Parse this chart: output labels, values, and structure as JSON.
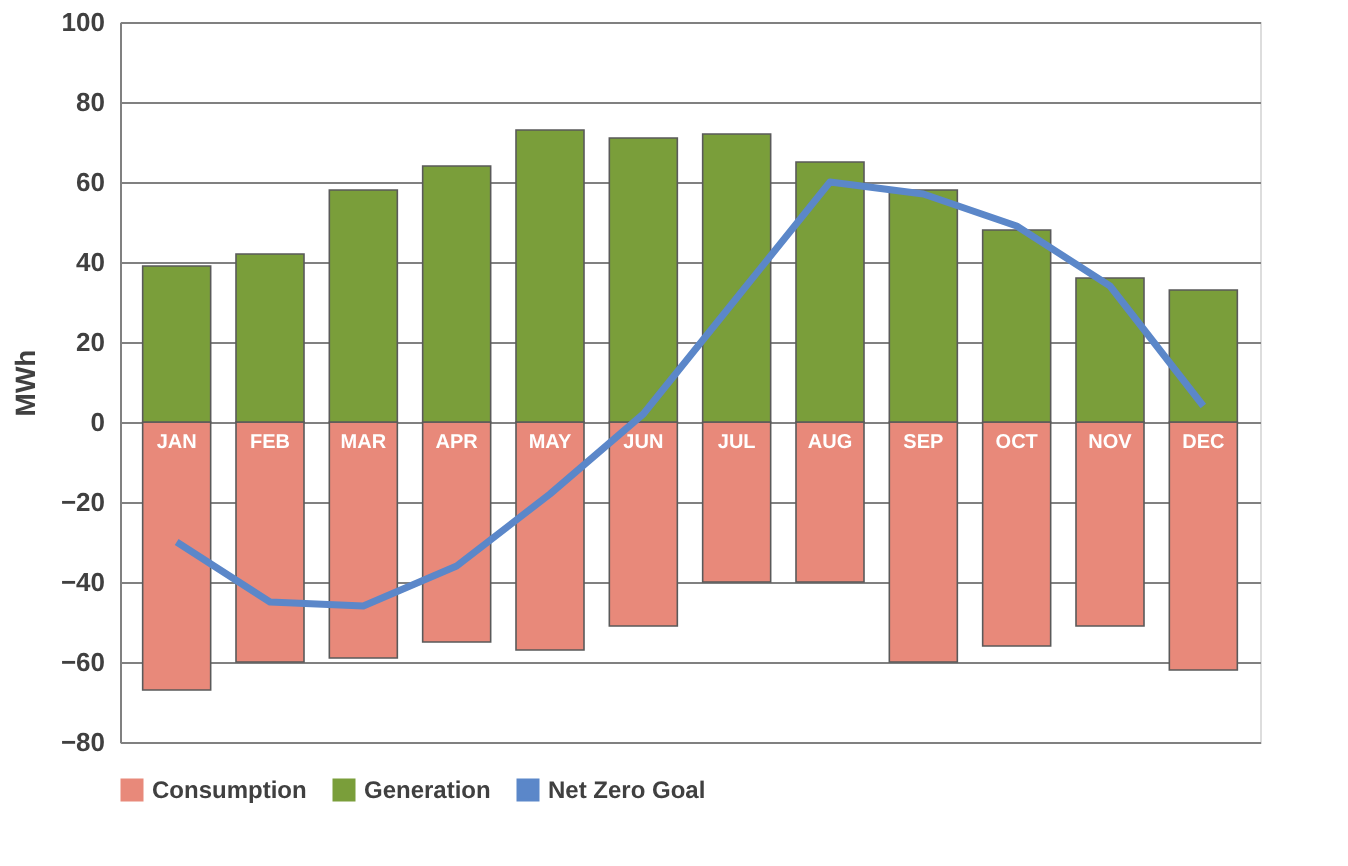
{
  "chart_data": {
    "type": "bar",
    "stacked": true,
    "ylabel": "MWh",
    "categories": [
      "JAN",
      "FEB",
      "MAR",
      "APR",
      "MAY",
      "JUN",
      "JUL",
      "AUG",
      "SEP",
      "OCT",
      "NOV",
      "DEC"
    ],
    "series": [
      {
        "name": "Consumption",
        "color": "#e8897a",
        "values": [
          -67,
          -60,
          -59,
          -55,
          -57,
          -51,
          -40,
          -40,
          -60,
          -56,
          -51,
          -62
        ]
      },
      {
        "name": "Generation",
        "color": "#7a9e3a",
        "values": [
          39,
          42,
          58,
          64,
          73,
          71,
          72,
          65,
          58,
          48,
          36,
          33
        ]
      },
      {
        "name": "Net Zero Goal",
        "type": "line",
        "color": "#5b87c9",
        "values": [
          -30,
          -45,
          -46,
          -36,
          -18,
          2,
          31,
          60,
          57,
          49,
          34,
          4
        ]
      }
    ],
    "ylim": [
      -80,
      100
    ],
    "yticks": [
      -80,
      -60,
      -40,
      -20,
      0,
      20,
      40,
      60,
      80,
      100
    ],
    "grid": "y",
    "legend": "bottom",
    "marker": "none",
    "line_style": "solid"
  }
}
